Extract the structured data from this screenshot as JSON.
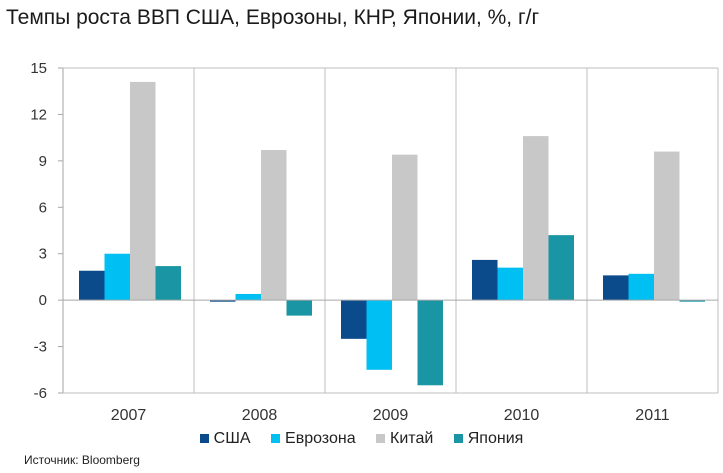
{
  "title": "Темпы роста ВВП США, Еврозоны, КНР, Японии, %, г/г",
  "source": "Источник: Bloomberg",
  "chart_data": {
    "type": "bar",
    "title": "Темпы роста ВВП США, Еврозоны, КНР, Японии, %, г/г",
    "categories": [
      "2007",
      "2008",
      "2009",
      "2010",
      "2011"
    ],
    "series": [
      {
        "name": "США",
        "color": "#0b4a8b",
        "values": [
          1.9,
          -0.1,
          -2.5,
          2.6,
          1.6
        ]
      },
      {
        "name": "Еврозона",
        "color": "#00bff3",
        "values": [
          3.0,
          0.4,
          -4.5,
          2.1,
          1.7
        ]
      },
      {
        "name": "Китай",
        "color": "#c8c8c8",
        "values": [
          14.1,
          9.7,
          9.4,
          10.6,
          9.6
        ]
      },
      {
        "name": "Япония",
        "color": "#1a95a3",
        "values": [
          2.2,
          -1.0,
          -5.5,
          4.2,
          -0.1
        ]
      }
    ],
    "yticks": [
      "15",
      "12",
      "9",
      "6",
      "3",
      "0",
      "-3",
      "-6"
    ],
    "ylim": [
      -6,
      15
    ],
    "xlabel": "",
    "ylabel": "",
    "legend_position": "bottom",
    "grid": "vertical category separators"
  }
}
